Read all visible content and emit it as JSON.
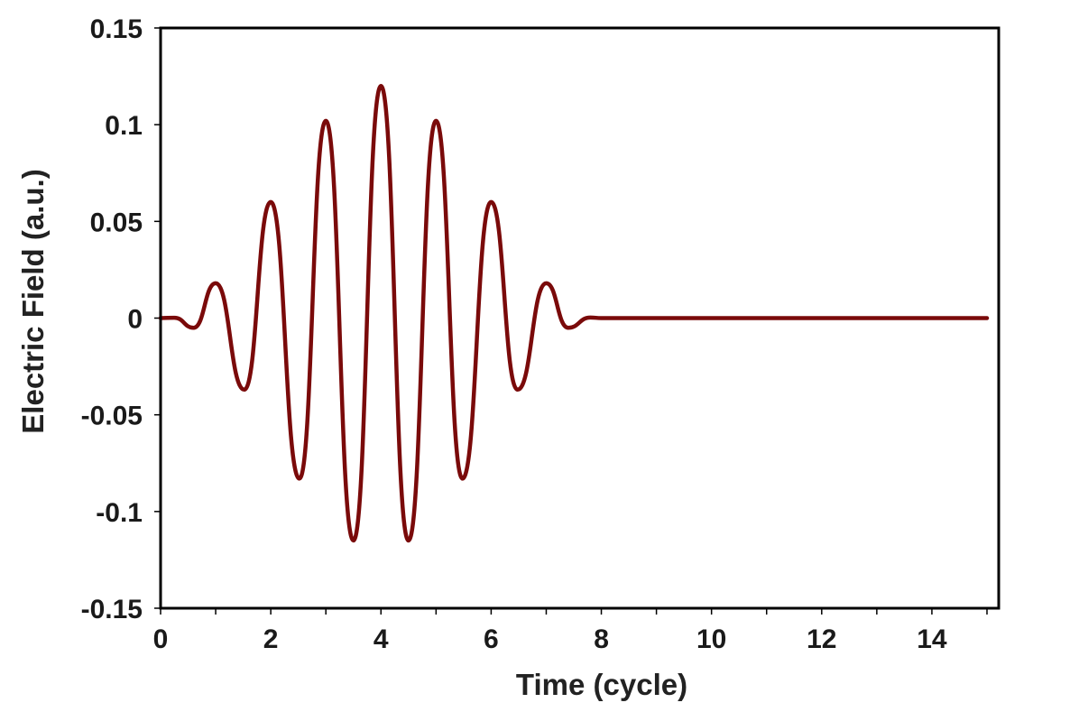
{
  "chart_data": {
    "type": "line",
    "title": "",
    "xlabel": "Time (cycle)",
    "ylabel": "Electric Field (a.u.)",
    "xlim": [
      0,
      15
    ],
    "ylim": [
      -0.15,
      0.15
    ],
    "x_ticks": [
      0,
      2,
      4,
      6,
      8,
      10,
      12,
      14
    ],
    "x_tick_labels": [
      "0",
      "2",
      "4",
      "6",
      "8",
      "10",
      "12",
      "14"
    ],
    "x_minor_ticks": [
      1,
      3,
      5,
      7,
      9,
      11,
      13,
      15
    ],
    "y_ticks": [
      0.15,
      0.1,
      0.05,
      0,
      -0.05,
      -0.1,
      -0.15
    ],
    "y_tick_labels": [
      "0.15",
      "0.1",
      "0.05",
      "0",
      "-0.05",
      "-0.1",
      "-0.15"
    ],
    "grid": false,
    "legend": "none",
    "series": [
      {
        "color": "#7a0a0a",
        "points": [
          [
            0,
            0
          ],
          [
            0.25,
            0.0002
          ],
          [
            0.6,
            -0.005
          ],
          [
            1.0,
            0.018
          ],
          [
            1.52,
            -0.037
          ],
          [
            2.0,
            0.06
          ],
          [
            2.52,
            -0.083
          ],
          [
            3.0,
            0.102
          ],
          [
            3.5,
            -0.115
          ],
          [
            4.0,
            0.12
          ],
          [
            4.5,
            -0.115
          ],
          [
            5.0,
            0.102
          ],
          [
            5.48,
            -0.083
          ],
          [
            6.0,
            0.06
          ],
          [
            6.48,
            -0.037
          ],
          [
            7.0,
            0.018
          ],
          [
            7.4,
            -0.005
          ],
          [
            7.8,
            0.0003
          ],
          [
            8.0,
            0
          ],
          [
            15.0,
            0
          ]
        ]
      }
    ]
  }
}
